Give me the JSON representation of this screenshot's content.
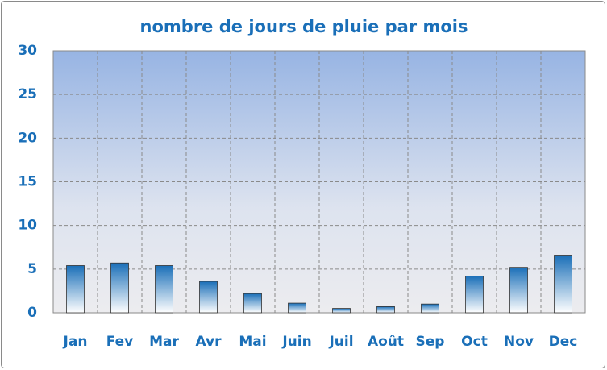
{
  "chart_data": {
    "type": "bar",
    "title": "nombre de jours de pluie par mois",
    "categories": [
      "Jan",
      "Fev",
      "Mar",
      "Avr",
      "Mai",
      "Juin",
      "Juil",
      "Août",
      "Sep",
      "Oct",
      "Nov",
      "Dec"
    ],
    "values": [
      5.4,
      5.7,
      5.4,
      3.6,
      2.2,
      1.1,
      0.5,
      0.7,
      1.0,
      4.2,
      5.2,
      6.6
    ],
    "color": "#1a6fb8",
    "ylim": [
      0,
      30
    ],
    "yticks": [
      0,
      5,
      10,
      15,
      20,
      25,
      30
    ],
    "grid": true
  }
}
